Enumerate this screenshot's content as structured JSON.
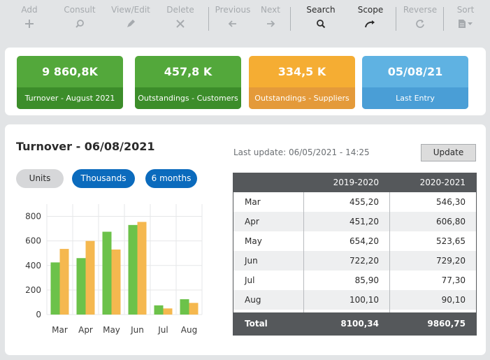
{
  "toolbar": {
    "add": {
      "label": "Add",
      "icon": "plus-icon"
    },
    "consult": {
      "label": "Consult",
      "icon": "magnifier-icon"
    },
    "view_edit": {
      "label": "View/Edit",
      "icon": "pencil-icon"
    },
    "delete": {
      "label": "Delete",
      "icon": "x-icon"
    },
    "previous": {
      "label": "Previous",
      "icon": "arrow-left-icon"
    },
    "next": {
      "label": "Next",
      "icon": "arrow-right-icon"
    },
    "search": {
      "label": "Search",
      "icon": "search-icon"
    },
    "scope": {
      "label": "Scope",
      "icon": "curved-arrow-icon"
    },
    "reverse": {
      "label": "Reverse",
      "icon": "refresh-icon"
    },
    "sort": {
      "label": "Sort",
      "icon": "document-dropdown-icon"
    }
  },
  "kpis": [
    {
      "value": "9 860,8K",
      "caption": "Turnover - August 2021",
      "color": "#53a83b",
      "caption_color": "#3c8d2a"
    },
    {
      "value": "457,8 K",
      "caption": "Outstandings - Customers",
      "color": "#53a83b",
      "caption_color": "#3c8d2a"
    },
    {
      "value": "334,5 K",
      "caption": "Outstandings - Suppliers",
      "color": "#f5ad33",
      "caption_color": "#e49a3a"
    },
    {
      "value": "05/08/21",
      "caption": "Last Entry",
      "color": "#5fb2e2",
      "caption_color": "#4a9ed6"
    }
  ],
  "turnover": {
    "title": "Turnover - 06/08/2021",
    "last_update": "Last update: 06/05/2021 - 14:25",
    "update_label": "Update",
    "filters": {
      "units": "Units",
      "thousands": "Thousands",
      "months": "6 months"
    }
  },
  "table": {
    "headers": [
      "",
      "2019-2020",
      "2020-2021"
    ],
    "rows": [
      [
        "Mar",
        "455,20",
        "546,30"
      ],
      [
        "Apr",
        "451,20",
        "606,80"
      ],
      [
        "May",
        "654,20",
        "523,65"
      ],
      [
        "Jun",
        "722,20",
        "729,20"
      ],
      [
        "Jul",
        "85,90",
        "77,30"
      ],
      [
        "Aug",
        "100,10",
        "90,10"
      ]
    ],
    "total": [
      "Total",
      "8100,34",
      "9860,75"
    ]
  },
  "chart_data": {
    "type": "bar",
    "categories": [
      "Mar",
      "Apr",
      "May",
      "Jun",
      "Jul",
      "Aug"
    ],
    "series": [
      {
        "values": [
          425,
          460,
          675,
          730,
          75,
          125
        ],
        "color": "#6cc24a"
      },
      {
        "values": [
          535,
          600,
          530,
          755,
          50,
          95
        ],
        "color": "#f5b84f"
      }
    ],
    "yticks": [
      0,
      200,
      400,
      600,
      800
    ],
    "ylim": [
      0,
      900
    ],
    "grid": true
  }
}
